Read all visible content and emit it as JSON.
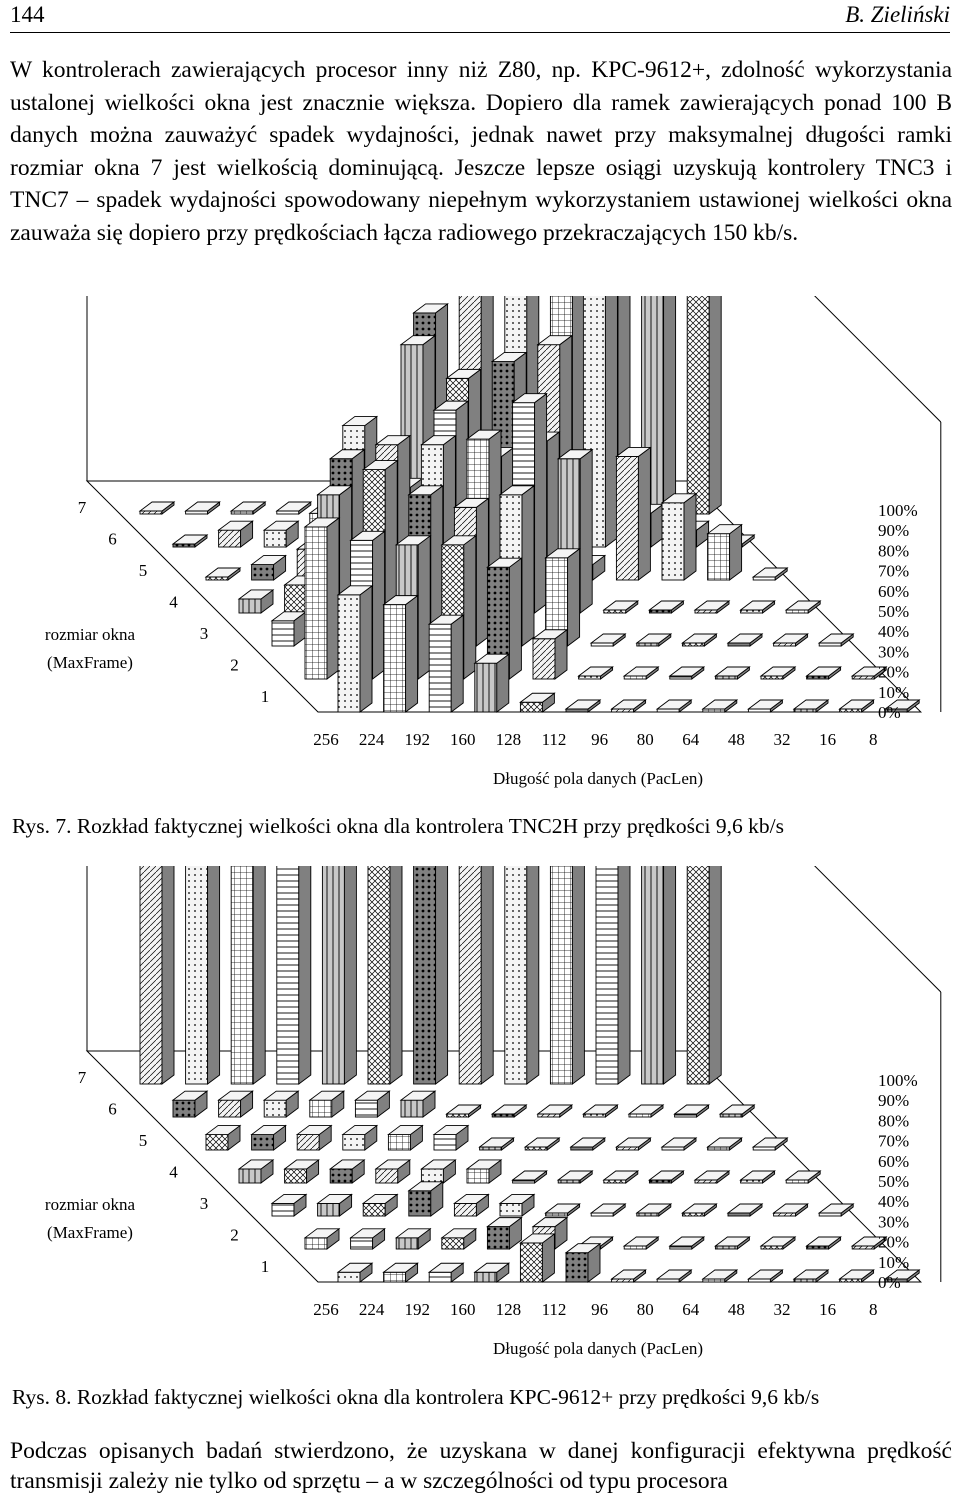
{
  "header": {
    "page_number": "144",
    "author": "B. Zieliński"
  },
  "paragraph1": "W kontrolerach zawierających procesor inny niż Z80, np. KPC-9612+, zdolność wykorzystania ustalonej wielkości okna jest znacznie większa. Dopiero dla ramek zawierających ponad 100 B danych można zauważyć spadek wydajności, jednak nawet przy maksymalnej długości ramki rozmiar okna 7 jest wielkością dominującą. Jeszcze lepsze osiągi uzyskują kontrolery TNC3 i TNC7 – spadek wydajności spowodowany niepełnym wykorzystaniem ustawionej wielkości okna zauważa się dopiero przy prędkościach łącza radiowego przekraczających 150 kb/s.",
  "paragraph2": "Podczas opisanych badań stwierdzono, że uzyskana w danej konfiguracji efektywna prędkość transmisji zależy nie tylko od sprzętu – a w szczególności od typu procesora",
  "colors": {
    "ink": "#000000",
    "paper": "#ffffff",
    "fill_light": "#f4f4f4",
    "fill_mid": "#c8c8c8",
    "fill_dark": "#808080"
  },
  "chart_data": [
    {
      "type": "bar3d",
      "caption": "Rys. 7. Rozkład faktycznej wielkości okna dla kontrolera TNC2H przy prędkości 9,6 kb/s",
      "xlabel": "Długość pola danych (PacLen)",
      "ylabel_line1": "rozmiar okna",
      "ylabel_line2": "(MaxFrame)",
      "categories": [
        "256",
        "224",
        "192",
        "160",
        "128",
        "112",
        "96",
        "80",
        "64",
        "48",
        "32",
        "16",
        "8"
      ],
      "rows": [
        "1",
        "2",
        "3",
        "4",
        "5",
        "6",
        "7"
      ],
      "z_ticks": [
        "0%",
        "10%",
        "20%",
        "30%",
        "40%",
        "50%",
        "60%",
        "70%",
        "80%",
        "90%",
        "100%"
      ],
      "zlim": [
        0,
        100
      ],
      "values": [
        [
          60,
          55,
          45,
          25,
          5,
          0,
          0,
          0,
          0,
          0,
          0,
          0,
          0
        ],
        [
          68,
          62,
          60,
          60,
          50,
          18,
          0,
          0,
          0,
          0,
          0,
          0,
          0
        ],
        [
          10,
          60,
          70,
          60,
          55,
          60,
          35,
          0,
          0,
          0,
          0,
          0,
          0
        ],
        [
          5,
          10,
          55,
          60,
          60,
          62,
          75,
          55,
          0,
          0,
          0,
          0,
          0
        ],
        [
          0,
          5,
          10,
          50,
          30,
          55,
          40,
          45,
          5,
          40,
          25,
          15,
          0
        ],
        [
          0,
          5,
          5,
          10,
          10,
          60,
          50,
          55,
          60,
          80,
          10,
          5,
          0
        ],
        [
          0,
          0,
          0,
          0,
          0,
          10,
          55,
          70,
          90,
          80,
          100,
          100,
          95
        ]
      ]
    },
    {
      "type": "bar3d",
      "caption": "Rys. 8. Rozkład faktycznej wielkości okna dla kontrolera KPC-9612+ przy prędkości 9,6 kb/s",
      "xlabel": "Długość pola danych (PacLen)",
      "ylabel_line1": "rozmiar okna",
      "ylabel_line2": "(MaxFrame)",
      "categories": [
        "256",
        "224",
        "192",
        "160",
        "128",
        "112",
        "96",
        "80",
        "64",
        "48",
        "32",
        "16",
        "8"
      ],
      "rows": [
        "1",
        "2",
        "3",
        "4",
        "5",
        "6",
        "7"
      ],
      "z_ticks": [
        "0%",
        "10%",
        "20%",
        "30%",
        "40%",
        "50%",
        "60%",
        "70%",
        "80%",
        "90%",
        "100%"
      ],
      "zlim": [
        0,
        100
      ],
      "values": [
        [
          5,
          5,
          5,
          5,
          20,
          15,
          0,
          0,
          0,
          0,
          0,
          0,
          0
        ],
        [
          5,
          5,
          5,
          5,
          10,
          10,
          0,
          0,
          0,
          0,
          0,
          0,
          0
        ],
        [
          5,
          5,
          5,
          10,
          5,
          5,
          0,
          0,
          0,
          0,
          0,
          0,
          0
        ],
        [
          5,
          5,
          5,
          5,
          5,
          5,
          0,
          0,
          0,
          0,
          0,
          0,
          0
        ],
        [
          5,
          5,
          5,
          5,
          5,
          5,
          0,
          0,
          0,
          0,
          0,
          0,
          0
        ],
        [
          5,
          5,
          5,
          5,
          5,
          5,
          0,
          0,
          0,
          0,
          0,
          0,
          0
        ],
        [
          85,
          90,
          90,
          95,
          100,
          100,
          100,
          100,
          100,
          100,
          100,
          100,
          100
        ]
      ]
    }
  ]
}
